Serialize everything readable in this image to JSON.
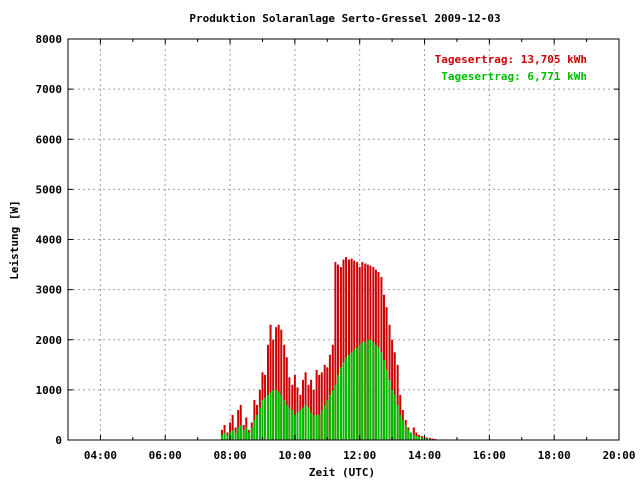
{
  "chart_data": {
    "type": "bar",
    "title": "Produktion Solaranlage Serto-Gressel 2009-12-03",
    "xlabel": "Zeit (UTC)",
    "ylabel": "Leistung [W]",
    "xlim": [
      3.0,
      20.0
    ],
    "ylim": [
      0,
      8000
    ],
    "x_ticks": [
      "04:00",
      "06:00",
      "08:00",
      "10:00",
      "12:00",
      "14:00",
      "16:00",
      "18:00",
      "20:00"
    ],
    "y_ticks": [
      "0",
      "1000",
      "2000",
      "3000",
      "4000",
      "5000",
      "6000",
      "7000",
      "8000"
    ],
    "grid": true,
    "legend_position": "top-right",
    "series": [
      {
        "name": "Tagesertrag: 13,705 kWh",
        "color": "#cc0000",
        "x": [
          7.75,
          7.83,
          7.92,
          8.0,
          8.08,
          8.17,
          8.25,
          8.33,
          8.42,
          8.5,
          8.58,
          8.67,
          8.75,
          8.83,
          8.92,
          9.0,
          9.08,
          9.17,
          9.25,
          9.33,
          9.42,
          9.5,
          9.58,
          9.67,
          9.75,
          9.83,
          9.92,
          10.0,
          10.08,
          10.17,
          10.25,
          10.33,
          10.42,
          10.5,
          10.58,
          10.67,
          10.75,
          10.83,
          10.92,
          11.0,
          11.08,
          11.17,
          11.25,
          11.33,
          11.42,
          11.5,
          11.58,
          11.67,
          11.75,
          11.83,
          11.92,
          12.0,
          12.08,
          12.17,
          12.25,
          12.33,
          12.42,
          12.5,
          12.58,
          12.67,
          12.75,
          12.83,
          12.92,
          13.0,
          13.08,
          13.17,
          13.25,
          13.33,
          13.42,
          13.5,
          13.58,
          13.67,
          13.75,
          13.83,
          13.92,
          14.0,
          14.08,
          14.17,
          14.25,
          14.33,
          14.42,
          14.5,
          14.58,
          14.67,
          14.75,
          14.83,
          14.92,
          15.0
        ],
        "values": [
          200,
          300,
          150,
          350,
          500,
          250,
          600,
          700,
          300,
          450,
          200,
          350,
          800,
          700,
          1000,
          1350,
          1300,
          1900,
          2300,
          2000,
          2250,
          2300,
          2200,
          1900,
          1650,
          1250,
          1100,
          1300,
          1050,
          900,
          1200,
          1350,
          1100,
          1200,
          1000,
          1400,
          1300,
          1350,
          1500,
          1450,
          1700,
          1900,
          3550,
          3500,
          3450,
          3600,
          3650,
          3600,
          3620,
          3580,
          3550,
          3450,
          3550,
          3520,
          3500,
          3480,
          3450,
          3400,
          3350,
          3250,
          2900,
          2650,
          2300,
          2000,
          1750,
          1500,
          900,
          600,
          400,
          250,
          150,
          250,
          150,
          100,
          80,
          60,
          50,
          40,
          30,
          20,
          10,
          10,
          10,
          10,
          0,
          0,
          0,
          0
        ]
      },
      {
        "name": "Tagesertrag: 6,771 kWh",
        "color": "#00bb00",
        "x": [
          7.75,
          7.83,
          7.92,
          8.0,
          8.08,
          8.17,
          8.25,
          8.33,
          8.42,
          8.5,
          8.58,
          8.67,
          8.75,
          8.83,
          8.92,
          9.0,
          9.08,
          9.17,
          9.25,
          9.33,
          9.42,
          9.5,
          9.58,
          9.67,
          9.75,
          9.83,
          9.92,
          10.0,
          10.08,
          10.17,
          10.25,
          10.33,
          10.42,
          10.5,
          10.58,
          10.67,
          10.75,
          10.83,
          10.92,
          11.0,
          11.08,
          11.17,
          11.25,
          11.33,
          11.42,
          11.5,
          11.58,
          11.67,
          11.75,
          11.83,
          11.92,
          12.0,
          12.08,
          12.17,
          12.25,
          12.33,
          12.42,
          12.5,
          12.58,
          12.67,
          12.75,
          12.83,
          12.92,
          13.0,
          13.08,
          13.17,
          13.25,
          13.33,
          13.42,
          13.5,
          13.58,
          13.67,
          13.75,
          13.83,
          13.92,
          14.0,
          14.08,
          14.17,
          14.25,
          14.33,
          14.42,
          14.5,
          14.58,
          14.67,
          14.75,
          14.83,
          14.92,
          15.0
        ],
        "values": [
          100,
          150,
          100,
          150,
          200,
          150,
          250,
          300,
          200,
          250,
          150,
          250,
          400,
          500,
          650,
          800,
          850,
          900,
          950,
          1000,
          1000,
          950,
          900,
          800,
          700,
          650,
          600,
          500,
          550,
          600,
          650,
          700,
          650,
          550,
          500,
          500,
          500,
          600,
          700,
          800,
          900,
          1000,
          1100,
          1300,
          1450,
          1550,
          1650,
          1700,
          1750,
          1800,
          1850,
          1900,
          1950,
          1950,
          2000,
          2000,
          1950,
          1900,
          1850,
          1750,
          1600,
          1400,
          1200,
          1000,
          900,
          700,
          500,
          400,
          300,
          200,
          150,
          100,
          80,
          60,
          50,
          40,
          30,
          20,
          10,
          10,
          10,
          5,
          5,
          0,
          0,
          0,
          0,
          0
        ]
      }
    ]
  }
}
